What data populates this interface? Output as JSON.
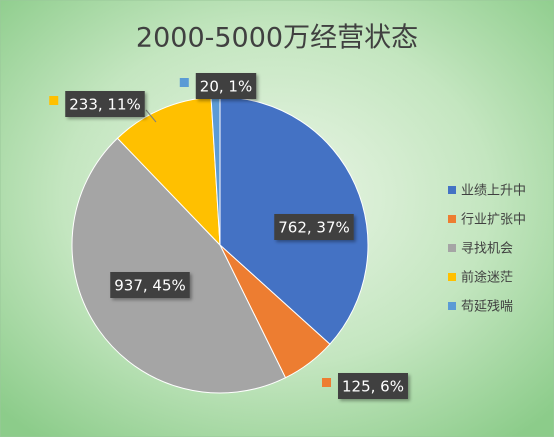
{
  "chart_data": {
    "type": "pie",
    "title": "2000-5000万经营状态",
    "categories": [
      "业绩上升中",
      "行业扩张中",
      "寻找机会",
      "前途迷茫",
      "苟延残喘"
    ],
    "values": [
      762,
      125,
      937,
      233,
      20
    ],
    "value_labels": [
      "762, 37%",
      "125, 6%",
      "937, 45%",
      "233, 11%",
      "20, 1%"
    ],
    "colors": [
      "#4472c4",
      "#ed7d31",
      "#a5a5a5",
      "#ffc000",
      "#5b9bd5"
    ],
    "legend": "right"
  }
}
